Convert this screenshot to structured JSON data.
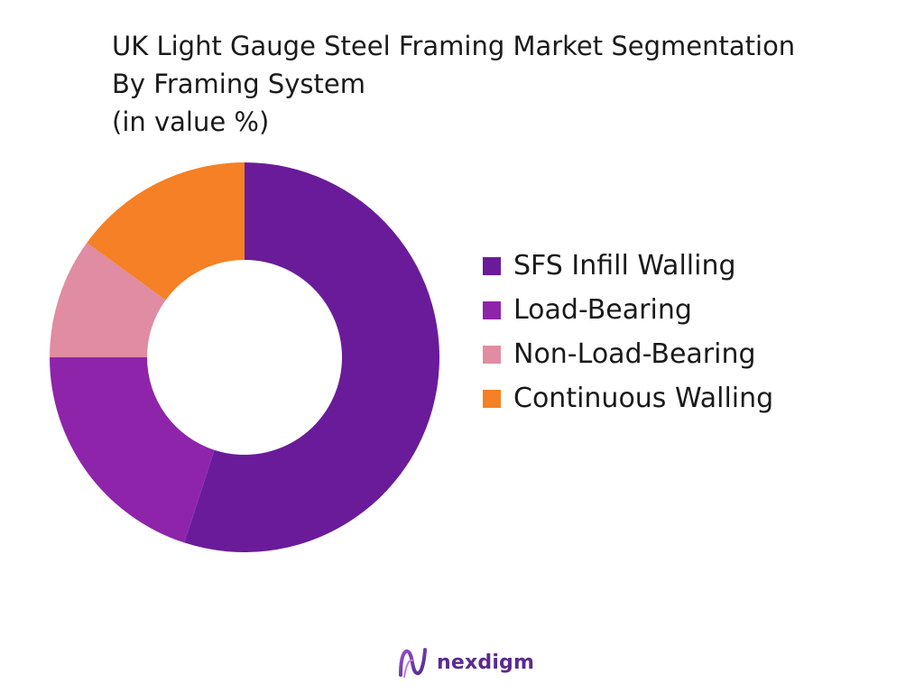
{
  "chart_data": {
    "type": "pie",
    "title_lines": [
      "UK Light Gauge Steel Framing Market Segmentation",
      "By Framing System",
      "(in value %)"
    ],
    "donut": true,
    "legend_position": "right",
    "categories": [
      "SFS Infill Walling",
      "Load-Bearing",
      "Non-Load-Bearing",
      "Continuous Walling"
    ],
    "values": [
      55,
      20,
      10,
      15
    ],
    "colors": [
      "#6a1b9a",
      "#8e24aa",
      "#e08ca3",
      "#f58025"
    ]
  },
  "brand": {
    "name": "nexdigm",
    "icon": "nexdigm-logo-icon"
  }
}
